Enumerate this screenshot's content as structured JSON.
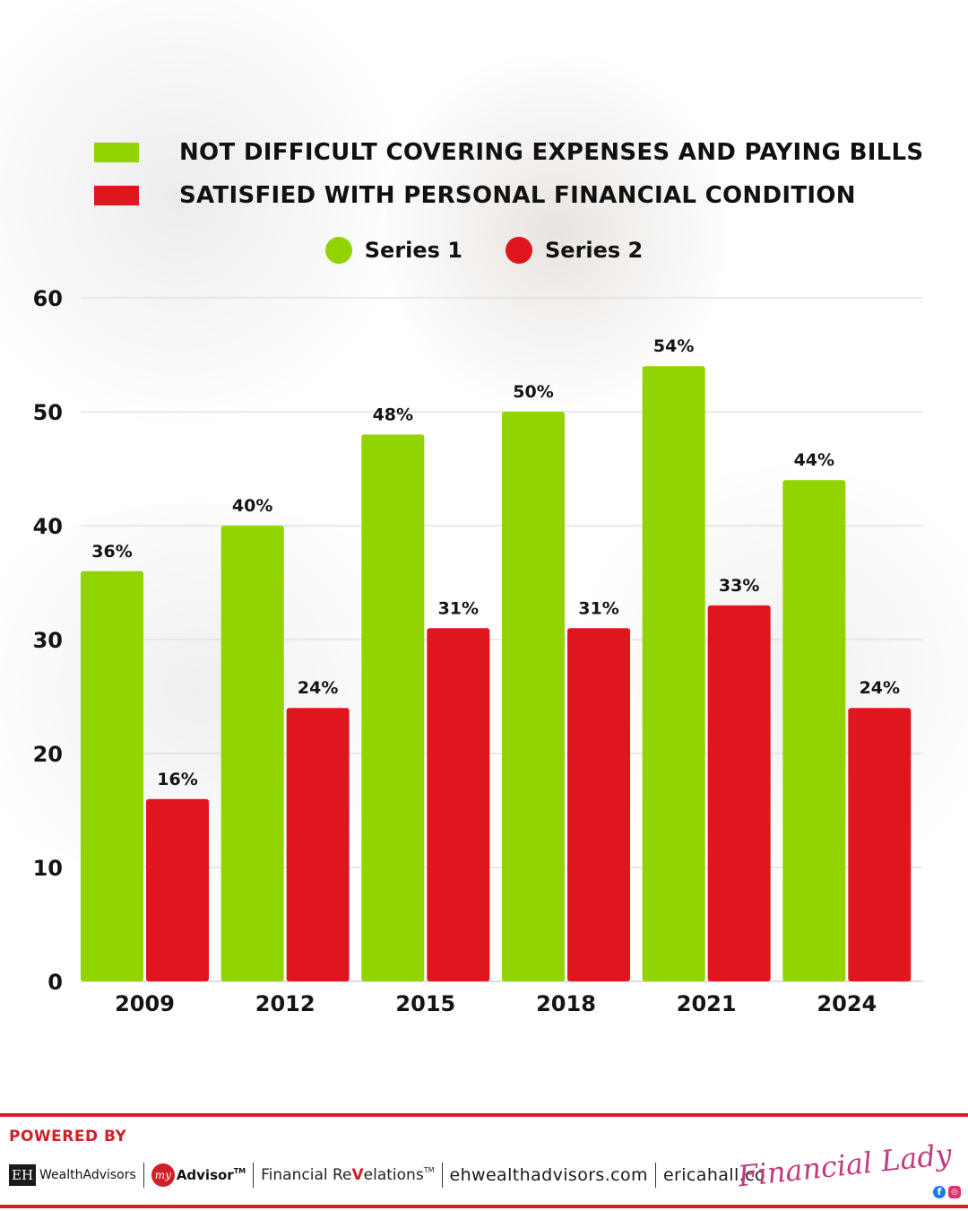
{
  "key": [
    {
      "text": "NOT DIFFICULT COVERING EXPENSES AND PAYING BILLS",
      "color": "#92d400"
    },
    {
      "text": "SATISFIED WITH PERSONAL FINANCIAL CONDITION",
      "color": "#e0161f"
    }
  ],
  "chart_data": {
    "type": "bar",
    "categories": [
      "2009",
      "2012",
      "2015",
      "2018",
      "2021",
      "2024"
    ],
    "series": [
      {
        "name": "Series 1",
        "color": "#92d400",
        "values": [
          36,
          40,
          48,
          50,
          54,
          44
        ],
        "labels": [
          "36%",
          "40%",
          "48%",
          "50%",
          "54%",
          "44%"
        ]
      },
      {
        "name": "Series 2",
        "color": "#e0161f",
        "values": [
          16,
          24,
          31,
          31,
          33,
          24
        ],
        "labels": [
          "16%",
          "24%",
          "31%",
          "31%",
          "33%",
          "24%"
        ]
      }
    ],
    "ylim": [
      0,
      60
    ],
    "yticks": [
      "0",
      "10",
      "20",
      "30",
      "40",
      "50",
      "60"
    ],
    "grid": true,
    "legend_position": "top-center"
  },
  "footer": {
    "powered_by": "POWERED BY",
    "eh_logo": "EH",
    "eh_name": "WealthAdvisors",
    "my_logo": "my",
    "my_advisor": "Advisor",
    "tm": "TM",
    "fin_rev_a": "Financial Re",
    "fin_rev_check": "V",
    "fin_rev_b": "elations",
    "site1": "ehwealthadvisors.com",
    "site2": "ericahall.co",
    "signature": "Financial Lady",
    "fb": "f",
    "ig": "◎"
  }
}
